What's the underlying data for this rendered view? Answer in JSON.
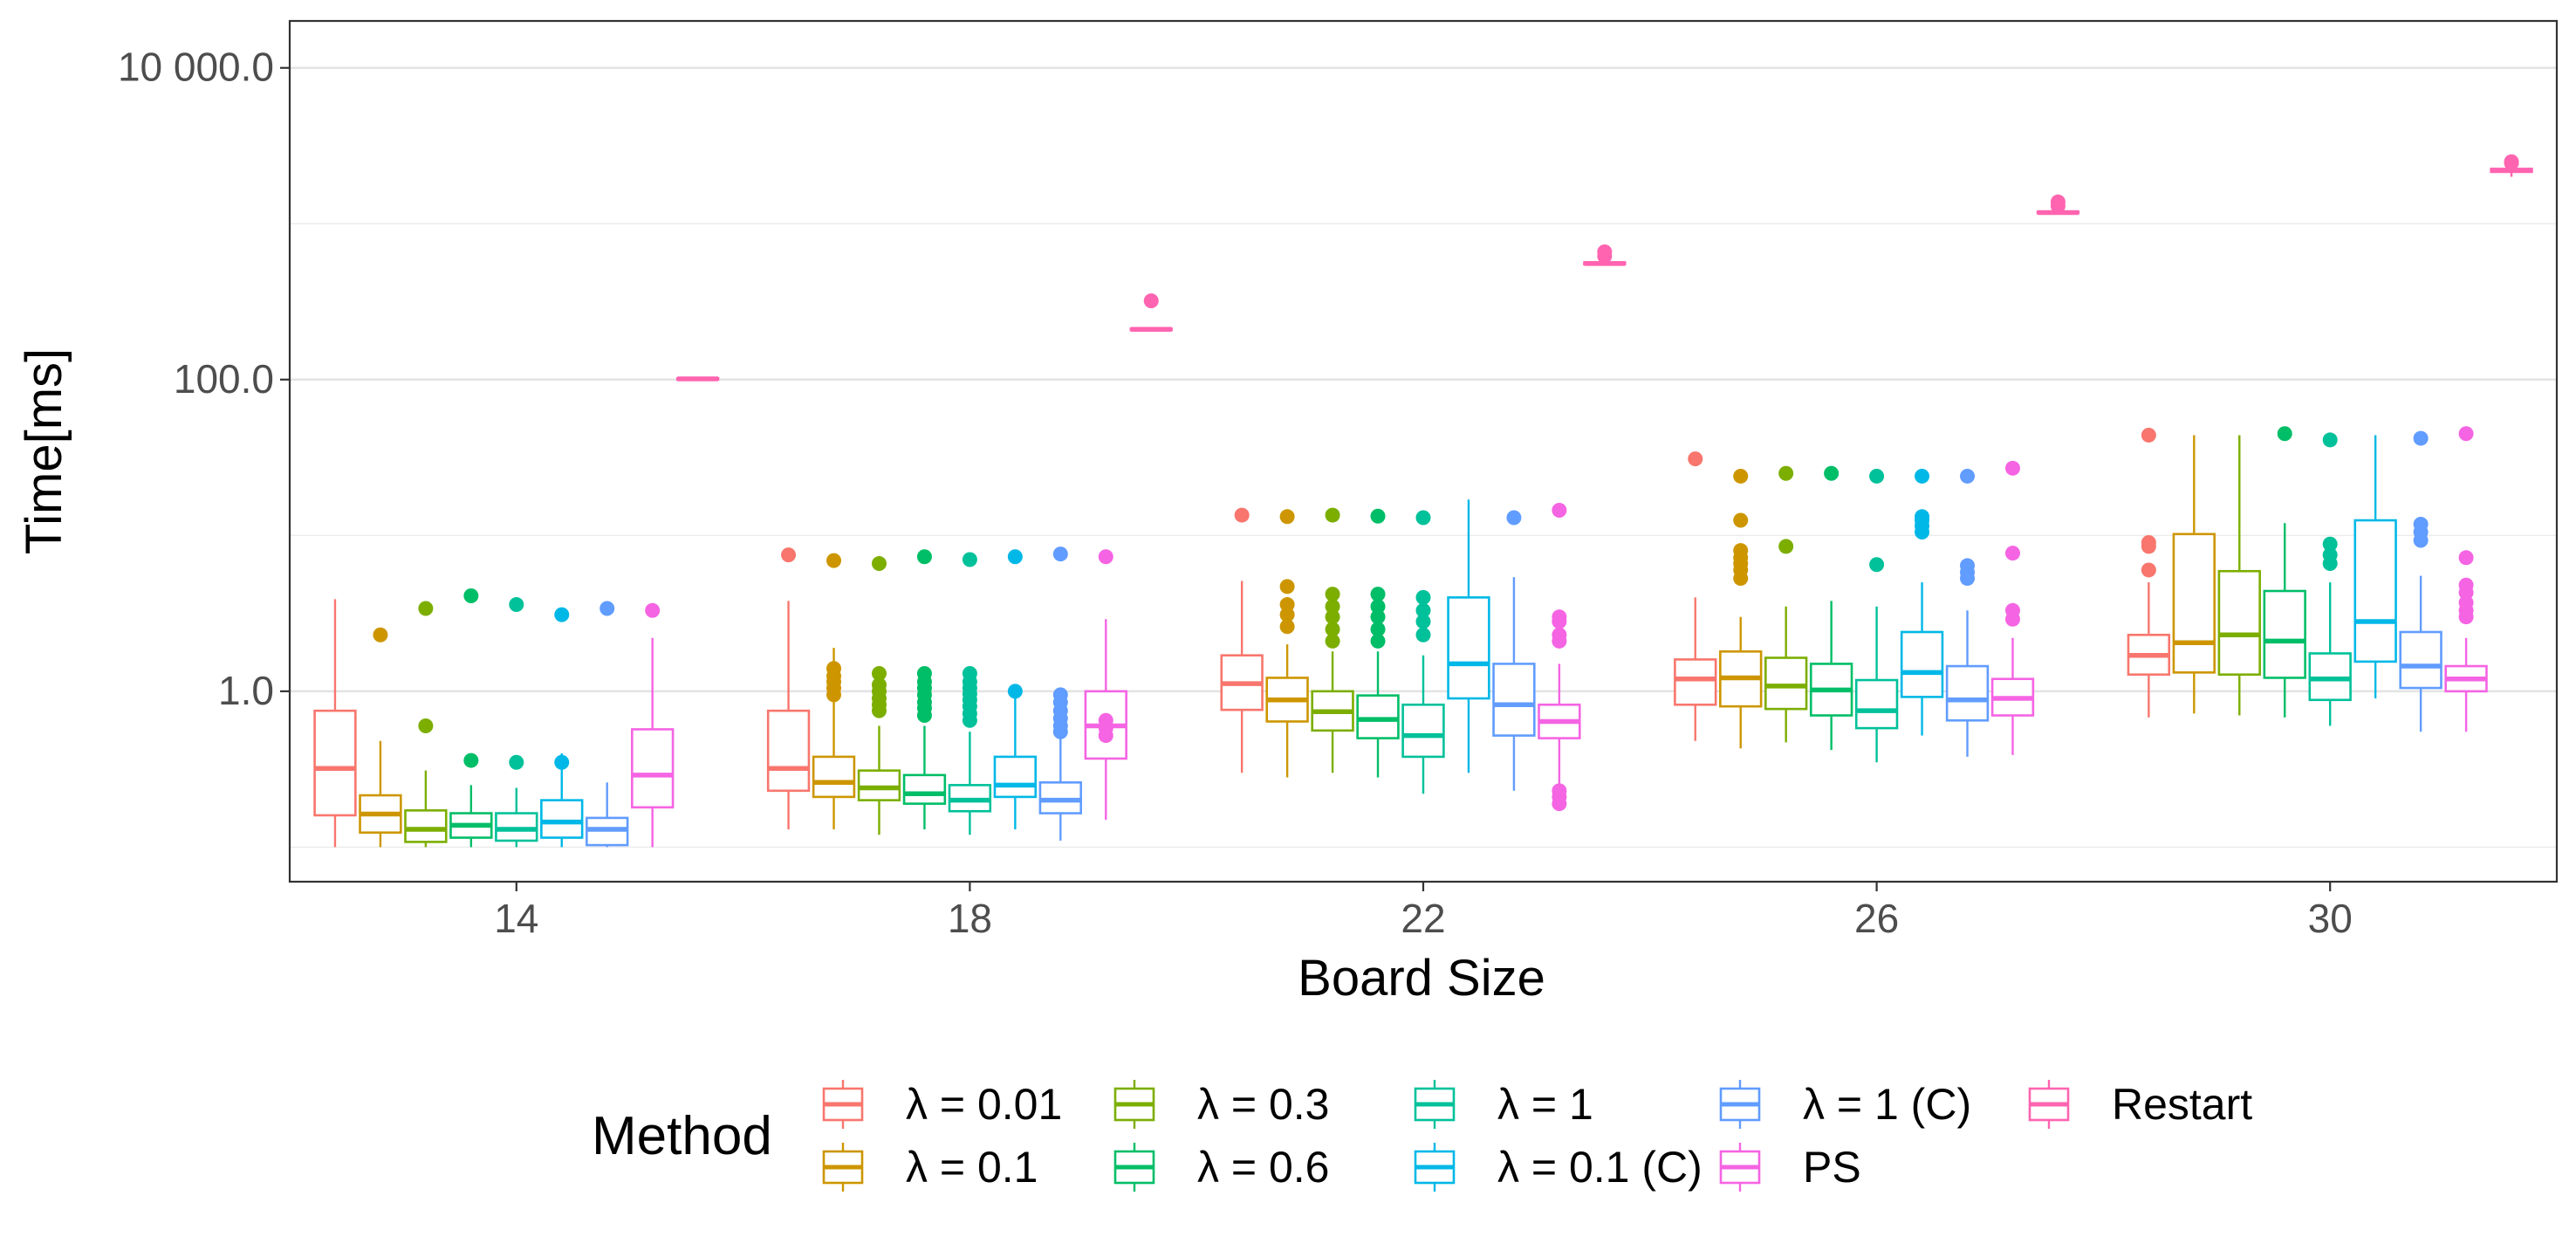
{
  "chart_data": {
    "type": "boxplot",
    "title": "",
    "xlabel": "Board Size",
    "ylabel": "Time[ms]",
    "yscale": "log10",
    "ylim": [
      0.06,
      20000
    ],
    "y_ticks": [
      1,
      100,
      10000
    ],
    "y_tick_labels": [
      "1.0",
      "100.0",
      "10 000.0"
    ],
    "grid": true,
    "categories": [
      "14",
      "18",
      "22",
      "26",
      "30"
    ],
    "legend": {
      "title": "Method",
      "position": "bottom"
    },
    "series": [
      {
        "name": "λ = 0.01",
        "color": "#F8766D",
        "boxes": [
          {
            "min": 0.1,
            "q1": 0.16,
            "median": 0.32,
            "q3": 0.75,
            "max": 3.9,
            "outliers": []
          },
          {
            "min": 0.13,
            "q1": 0.23,
            "median": 0.32,
            "q3": 0.75,
            "max": 3.8,
            "outliers": [
              7.5
            ]
          },
          {
            "min": 0.3,
            "q1": 0.76,
            "median": 1.12,
            "q3": 1.7,
            "max": 5.1,
            "outliers": [
              13.5
            ]
          },
          {
            "min": 0.48,
            "q1": 0.82,
            "median": 1.2,
            "q3": 1.6,
            "max": 4.0,
            "outliers": [
              31
            ]
          },
          {
            "min": 0.68,
            "q1": 1.28,
            "median": 1.7,
            "q3": 2.3,
            "max": 5.0,
            "outliers": [
              6.0,
              8.5,
              9.0,
              44
            ]
          }
        ]
      },
      {
        "name": "λ = 0.1",
        "color": "#CD9600",
        "boxes": [
          {
            "min": 0.1,
            "q1": 0.124,
            "median": 0.163,
            "q3": 0.215,
            "max": 0.48,
            "outliers": [
              2.3
            ]
          },
          {
            "min": 0.13,
            "q1": 0.21,
            "median": 0.26,
            "q3": 0.38,
            "max": 1.9,
            "outliers": [
              0.95,
              1.05,
              1.15,
              1.25,
              1.4,
              6.9
            ]
          },
          {
            "min": 0.28,
            "q1": 0.64,
            "median": 0.88,
            "q3": 1.22,
            "max": 2.0,
            "outliers": [
              2.6,
              3.1,
              3.6,
              4.7,
              13.2
            ]
          },
          {
            "min": 0.43,
            "q1": 0.8,
            "median": 1.22,
            "q3": 1.8,
            "max": 3.0,
            "outliers": [
              5.3,
              6.0,
              6.6,
              7.2,
              8.0,
              12.5,
              24
            ]
          },
          {
            "min": 0.72,
            "q1": 1.32,
            "median": 2.05,
            "q3": 10.2,
            "max": 44,
            "outliers": []
          }
        ]
      },
      {
        "name": "λ = 0.3",
        "color": "#7CAE00",
        "boxes": [
          {
            "min": 0.1,
            "q1": 0.108,
            "median": 0.13,
            "q3": 0.172,
            "max": 0.31,
            "outliers": [
              0.6,
              3.4
            ]
          },
          {
            "min": 0.12,
            "q1": 0.2,
            "median": 0.24,
            "q3": 0.31,
            "max": 0.6,
            "outliers": [
              0.75,
              0.82,
              0.9,
              1.0,
              1.1,
              1.3,
              6.6
            ]
          },
          {
            "min": 0.3,
            "q1": 0.56,
            "median": 0.74,
            "q3": 1.0,
            "max": 1.8,
            "outliers": [
              2.1,
              2.5,
              3.0,
              3.5,
              4.2,
              13.5
            ]
          },
          {
            "min": 0.47,
            "q1": 0.77,
            "median": 1.08,
            "q3": 1.64,
            "max": 3.5,
            "outliers": [
              8.5,
              25
            ]
          },
          {
            "min": 0.7,
            "q1": 1.28,
            "median": 2.3,
            "q3": 5.9,
            "max": 44,
            "outliers": []
          }
        ]
      },
      {
        "name": "λ = 0.6",
        "color": "#00BE67",
        "boxes": [
          {
            "min": 0.1,
            "q1": 0.115,
            "median": 0.138,
            "q3": 0.165,
            "max": 0.25,
            "outliers": [
              0.36,
              4.1
            ]
          },
          {
            "min": 0.13,
            "q1": 0.19,
            "median": 0.22,
            "q3": 0.29,
            "max": 0.6,
            "outliers": [
              0.7,
              0.78,
              0.85,
              0.95,
              1.05,
              1.15,
              1.3,
              7.3
            ]
          },
          {
            "min": 0.28,
            "q1": 0.5,
            "median": 0.66,
            "q3": 0.94,
            "max": 1.8,
            "outliers": [
              2.1,
              2.5,
              3.0,
              3.5,
              4.2,
              13.3
            ]
          },
          {
            "min": 0.42,
            "q1": 0.7,
            "median": 1.02,
            "q3": 1.5,
            "max": 3.8,
            "outliers": [
              25
            ]
          },
          {
            "min": 0.68,
            "q1": 1.22,
            "median": 2.1,
            "q3": 4.4,
            "max": 12,
            "outliers": [
              45
            ]
          }
        ]
      },
      {
        "name": "λ = 1",
        "color": "#00C19A",
        "boxes": [
          {
            "min": 0.1,
            "q1": 0.11,
            "median": 0.13,
            "q3": 0.165,
            "max": 0.24,
            "outliers": [
              0.35,
              3.6
            ]
          },
          {
            "min": 0.12,
            "q1": 0.17,
            "median": 0.2,
            "q3": 0.25,
            "max": 0.55,
            "outliers": [
              0.65,
              0.72,
              0.8,
              0.88,
              0.96,
              1.05,
              1.15,
              1.3,
              7.0
            ]
          },
          {
            "min": 0.22,
            "q1": 0.38,
            "median": 0.52,
            "q3": 0.82,
            "max": 1.7,
            "outliers": [
              2.3,
              2.8,
              3.3,
              4.0,
              13.0
            ]
          },
          {
            "min": 0.35,
            "q1": 0.58,
            "median": 0.75,
            "q3": 1.18,
            "max": 3.5,
            "outliers": [
              6.5,
              24
            ]
          },
          {
            "min": 0.6,
            "q1": 0.88,
            "median": 1.2,
            "q3": 1.75,
            "max": 5.0,
            "outliers": [
              6.6,
              7.5,
              8.8,
              41
            ]
          }
        ]
      },
      {
        "name": "λ = 0.1 (C)",
        "color": "#00B8E7",
        "boxes": [
          {
            "min": 0.1,
            "q1": 0.115,
            "median": 0.145,
            "q3": 0.2,
            "max": 0.4,
            "outliers": [
              0.35,
              3.1
            ]
          },
          {
            "min": 0.13,
            "q1": 0.21,
            "median": 0.25,
            "q3": 0.38,
            "max": 1.0,
            "outliers": [
              1.0,
              7.3
            ]
          },
          {
            "min": 0.3,
            "q1": 0.9,
            "median": 1.5,
            "q3": 4.0,
            "max": 17,
            "outliers": []
          },
          {
            "min": 0.52,
            "q1": 0.92,
            "median": 1.32,
            "q3": 2.4,
            "max": 5.0,
            "outliers": [
              10.5,
              11.5,
              12.5,
              13.2,
              24
            ]
          },
          {
            "min": 0.9,
            "q1": 1.55,
            "median": 2.8,
            "q3": 12.5,
            "max": 44,
            "outliers": []
          }
        ]
      },
      {
        "name": "λ = 1 (C)",
        "color": "#619CFF",
        "boxes": [
          {
            "min": 0.1,
            "q1": 0.103,
            "median": 0.13,
            "q3": 0.154,
            "max": 0.26,
            "outliers": [
              3.4
            ]
          },
          {
            "min": 0.11,
            "q1": 0.165,
            "median": 0.2,
            "q3": 0.26,
            "max": 0.85,
            "outliers": [
              0.55,
              0.6,
              0.67,
              0.75,
              0.85,
              0.95,
              7.6
            ]
          },
          {
            "min": 0.23,
            "q1": 0.52,
            "median": 0.82,
            "q3": 1.5,
            "max": 5.4,
            "outliers": [
              13.0
            ]
          },
          {
            "min": 0.38,
            "q1": 0.65,
            "median": 0.88,
            "q3": 1.45,
            "max": 3.3,
            "outliers": [
              5.3,
              5.8,
              6.4,
              24
            ]
          },
          {
            "min": 0.55,
            "q1": 1.05,
            "median": 1.45,
            "q3": 2.4,
            "max": 5.5,
            "outliers": [
              9.3,
              10.5,
              11.8,
              42
            ]
          }
        ]
      },
      {
        "name": "PS",
        "color": "#F564E3",
        "boxes": [
          {
            "min": 0.1,
            "q1": 0.18,
            "median": 0.29,
            "q3": 0.57,
            "max": 2.2,
            "outliers": [
              3.3
            ]
          },
          {
            "min": 0.15,
            "q1": 0.37,
            "median": 0.6,
            "q3": 1.0,
            "max": 2.9,
            "outliers": [
              0.52,
              0.58,
              0.65,
              7.3
            ]
          },
          {
            "min": 0.18,
            "q1": 0.5,
            "median": 0.64,
            "q3": 0.82,
            "max": 1.5,
            "outliers": [
              0.19,
              0.21,
              0.23,
              2.1,
              2.3,
              2.8,
              3.0,
              14.5
            ]
          },
          {
            "min": 0.39,
            "q1": 0.7,
            "median": 0.9,
            "q3": 1.2,
            "max": 2.2,
            "outliers": [
              2.9,
              3.3,
              7.7,
              27
            ]
          },
          {
            "min": 0.55,
            "q1": 1.0,
            "median": 1.2,
            "q3": 1.45,
            "max": 2.2,
            "outliers": [
              3.0,
              3.3,
              3.7,
              4.3,
              4.8,
              7.2,
              45
            ]
          }
        ]
      },
      {
        "name": "Restart",
        "color": "#FF64B0",
        "boxes": [
          {
            "min": 99,
            "q1": 100,
            "median": 101,
            "q3": 102,
            "max": 103,
            "outliers": []
          },
          {
            "min": 205,
            "q1": 208,
            "median": 210,
            "q3": 212,
            "max": 216,
            "outliers": [
              320
            ]
          },
          {
            "min": 540,
            "q1": 550,
            "median": 555,
            "q3": 565,
            "max": 575,
            "outliers": [
              620,
              660
            ]
          },
          {
            "min": 1150,
            "q1": 1170,
            "median": 1180,
            "q3": 1195,
            "max": 1215,
            "outliers": [
              1300,
              1380
            ]
          },
          {
            "min": 2000,
            "q1": 2150,
            "median": 2200,
            "q3": 2250,
            "max": 2350,
            "outliers": [
              2450,
              2500
            ]
          }
        ]
      }
    ]
  }
}
